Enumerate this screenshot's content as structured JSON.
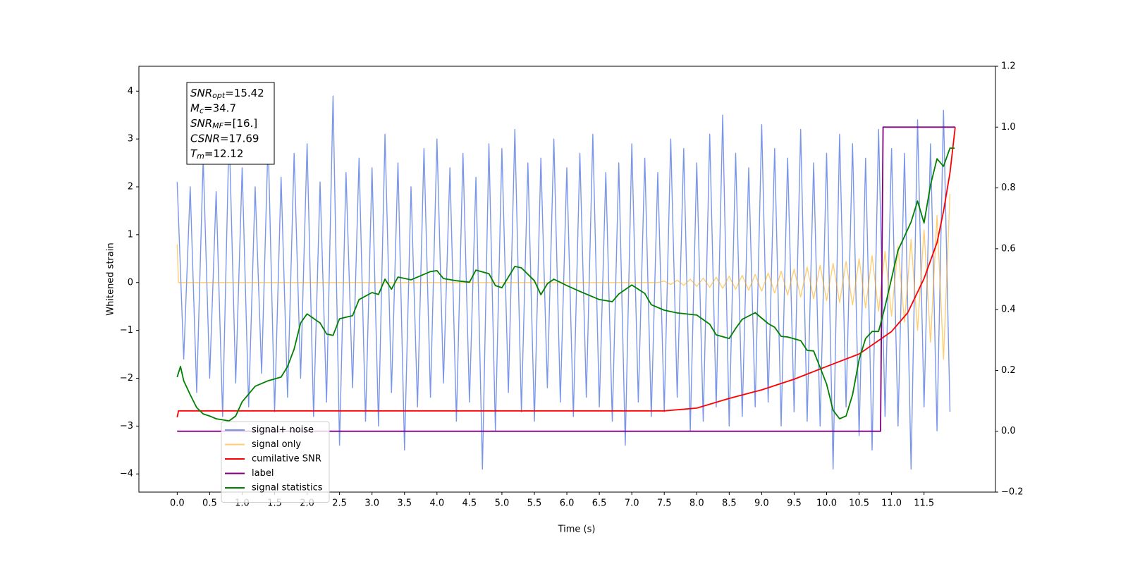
{
  "chart_data": {
    "type": "line",
    "xlabel": "Time (s)",
    "ylabel": "Whitened strain",
    "xlim": [
      -0.59,
      12.6
    ],
    "ylim": [
      -4.38,
      4.52
    ],
    "y2lim": [
      -0.2,
      1.2
    ],
    "xticks": [
      {
        "value": 0,
        "label": "0.0"
      },
      0.5,
      {
        "value": 1,
        "label": "1.0"
      },
      1.5,
      {
        "value": 2,
        "label": "2.0"
      },
      2.5,
      {
        "value": 3,
        "label": "3.0"
      },
      3.5,
      {
        "value": 4,
        "label": "4.0"
      },
      4.5,
      {
        "value": 5,
        "label": "5.0"
      },
      5.5,
      {
        "value": 6,
        "label": "6.0"
      },
      6.5,
      {
        "value": 7,
        "label": "7.0"
      },
      7.5,
      {
        "value": 8,
        "label": "8.0"
      },
      8.5,
      {
        "value": 9,
        "label": "9.0"
      },
      9.5,
      {
        "value": 10,
        "label": "10.0"
      },
      10.5,
      {
        "value": 11,
        "label": "11.0"
      },
      11.5
    ],
    "yticks": [
      {
        "value": -4,
        "label": "−4"
      },
      {
        "value": -3,
        "label": "−3"
      },
      {
        "value": -2,
        "label": "−2"
      },
      {
        "value": -1,
        "label": "−1"
      },
      0,
      1,
      2,
      3,
      4
    ],
    "y2ticks": [
      {
        "value": -0.2,
        "label": "−0.2"
      },
      {
        "value": 0,
        "label": "0.0"
      },
      0.2,
      0.4,
      0.6,
      0.8,
      {
        "value": 1,
        "label": "1.0"
      },
      1.2
    ],
    "legend": "lower left",
    "annotation": [
      {
        "main": "SNR",
        "sub": "opt",
        "rest": "=15.42"
      },
      {
        "main": "M",
        "sub": "c",
        "rest": "=34.7"
      },
      {
        "main": "SNR",
        "sub": "MF",
        "rest": "=[16.]"
      },
      {
        "main": "CSNR",
        "rest": "=17.69"
      },
      {
        "main": "T",
        "sub": "m",
        "rest": "=12.12"
      }
    ],
    "series": [
      {
        "name": "signal+ noise",
        "color": "#4169e1",
        "alpha": 0.7,
        "axis": "y",
        "x": [
          0,
          0.1,
          0.2,
          0.3,
          0.4,
          0.5,
          0.6,
          0.7,
          0.8,
          0.9,
          1,
          1.1,
          1.2,
          1.3,
          1.4,
          1.5,
          1.6,
          1.7,
          1.8,
          1.9,
          2,
          2.1,
          2.2,
          2.3,
          2.4,
          2.5,
          2.6,
          2.7,
          2.8,
          2.9,
          3,
          3.1,
          3.2,
          3.3,
          3.4,
          3.5,
          3.6,
          3.7,
          3.8,
          3.9,
          4,
          4.1,
          4.2,
          4.3,
          4.4,
          4.5,
          4.6,
          4.7,
          4.8,
          4.9,
          5,
          5.1,
          5.2,
          5.3,
          5.4,
          5.5,
          5.6,
          5.7,
          5.8,
          5.9,
          6,
          6.1,
          6.2,
          6.3,
          6.4,
          6.5,
          6.6,
          6.7,
          6.8,
          6.9,
          7,
          7.1,
          7.2,
          7.3,
          7.4,
          7.5,
          7.6,
          7.7,
          7.8,
          7.9,
          8,
          8.1,
          8.2,
          8.3,
          8.4,
          8.5,
          8.6,
          8.7,
          8.8,
          8.9,
          9,
          9.1,
          9.2,
          9.3,
          9.4,
          9.5,
          9.6,
          9.7,
          9.8,
          9.9,
          10,
          10.1,
          10.2,
          10.3,
          10.4,
          10.5,
          10.6,
          10.7,
          10.8,
          10.9,
          11,
          11.1,
          11.2,
          11.3,
          11.4,
          11.5,
          11.6,
          11.7,
          11.8,
          11.9
        ],
        "values": [
          2.1,
          -1.6,
          2.0,
          -2.3,
          2.6,
          -2.0,
          1.9,
          -2.8,
          3.2,
          -2.1,
          2.4,
          -2.6,
          2.0,
          -1.9,
          3.0,
          -2.7,
          2.2,
          -2.4,
          2.7,
          -2.0,
          2.9,
          -2.8,
          2.1,
          -2.5,
          3.9,
          -3.4,
          2.3,
          -2.2,
          2.6,
          -2.9,
          2.4,
          -3.0,
          3.1,
          -2.3,
          2.5,
          -3.5,
          2.0,
          -2.6,
          2.8,
          -2.4,
          3.0,
          -2.1,
          2.4,
          -2.9,
          2.7,
          -2.5,
          2.2,
          -3.9,
          2.9,
          -3.1,
          2.8,
          -2.3,
          3.2,
          -2.7,
          2.5,
          -2.9,
          2.6,
          -2.2,
          3.0,
          -2.5,
          2.4,
          -2.8,
          2.7,
          -2.4,
          3.1,
          -2.6,
          2.3,
          -2.9,
          2.5,
          -3.4,
          2.9,
          -2.5,
          2.6,
          -2.8,
          2.3,
          -2.7,
          3.0,
          -2.4,
          2.8,
          -3.1,
          2.5,
          -2.9,
          3.1,
          -2.6,
          3.5,
          -3.0,
          2.7,
          -2.8,
          2.4,
          -2.6,
          3.3,
          -2.5,
          2.8,
          -3.0,
          2.6,
          -2.7,
          3.2,
          -2.9,
          2.5,
          -3.0,
          2.7,
          -3.9,
          3.1,
          -2.6,
          2.9,
          -3.2,
          2.6,
          -3.5,
          3.2,
          -2.8,
          2.8,
          -3.0,
          2.7,
          -3.9,
          3.4,
          -2.6,
          2.9,
          -3.1,
          3.6,
          -2.7
        ]
      },
      {
        "name": "signal only",
        "color": "#ffa500",
        "alpha": 0.55,
        "axis": "y",
        "x": [
          0,
          0.02,
          7.4,
          7.5,
          7.6,
          7.7,
          7.8,
          7.9,
          8,
          8.1,
          8.2,
          8.3,
          8.4,
          8.5,
          8.6,
          8.7,
          8.8,
          8.9,
          9,
          9.1,
          9.2,
          9.3,
          9.4,
          9.5,
          9.6,
          9.7,
          9.8,
          9.9,
          10,
          10.1,
          10.2,
          10.3,
          10.4,
          10.5,
          10.6,
          10.7,
          10.8,
          10.9,
          11,
          11.1,
          11.2,
          11.3,
          11.4,
          11.5,
          11.6,
          11.7,
          11.8,
          11.9
        ],
        "values": [
          0.8,
          0,
          0,
          0.03,
          -0.04,
          0.05,
          -0.06,
          0.07,
          -0.08,
          0.09,
          -0.1,
          0.11,
          -0.12,
          0.13,
          -0.14,
          0.15,
          -0.16,
          0.17,
          -0.18,
          0.2,
          -0.22,
          0.24,
          -0.26,
          0.28,
          -0.3,
          0.32,
          -0.34,
          0.36,
          -0.38,
          0.4,
          -0.42,
          0.44,
          -0.47,
          0.5,
          -0.53,
          0.56,
          -0.6,
          0.65,
          -0.7,
          0.76,
          -0.83,
          0.9,
          -1.0,
          1.1,
          -1.25,
          1.4,
          -1.6,
          1.85
        ]
      },
      {
        "name": "cumilative SNR",
        "color": "#ff0000",
        "alpha": 1,
        "axis": "y2",
        "x": [
          0,
          0.02,
          7.5,
          8,
          8.5,
          9,
          9.5,
          10,
          10.5,
          11,
          11.25,
          11.5,
          11.7,
          11.8,
          11.9,
          11.98
        ],
        "values": [
          0.046,
          0.067,
          0.067,
          0.076,
          0.108,
          0.136,
          0.171,
          0.213,
          0.254,
          0.328,
          0.39,
          0.502,
          0.62,
          0.723,
          0.85,
          1.0
        ]
      },
      {
        "name": "label",
        "color": "#800080",
        "alpha": 1,
        "axis": "y2",
        "x": [
          0,
          10.83,
          10.87,
          11.98
        ],
        "values": [
          0,
          0,
          1,
          1
        ]
      },
      {
        "name": "signal statistics",
        "color": "#008000",
        "alpha": 1,
        "axis": "y2",
        "x": [
          0,
          0.05,
          0.1,
          0.2,
          0.3,
          0.4,
          0.5,
          0.6,
          0.8,
          0.9,
          1.0,
          1.2,
          1.4,
          1.6,
          1.7,
          1.8,
          1.9,
          2.0,
          2.2,
          2.3,
          2.4,
          2.5,
          2.7,
          2.8,
          3.0,
          3.1,
          3.2,
          3.3,
          3.4,
          3.6,
          3.9,
          4.0,
          4.1,
          4.3,
          4.5,
          4.6,
          4.8,
          4.9,
          5.0,
          5.2,
          5.3,
          5.5,
          5.6,
          5.7,
          5.8,
          6.0,
          6.2,
          6.5,
          6.7,
          6.8,
          7.0,
          7.2,
          7.3,
          7.5,
          7.7,
          8.0,
          8.2,
          8.3,
          8.5,
          8.6,
          8.7,
          8.9,
          9.1,
          9.2,
          9.3,
          9.4,
          9.6,
          9.7,
          9.8,
          10.0,
          10.1,
          10.2,
          10.3,
          10.4,
          10.5,
          10.6,
          10.7,
          10.8,
          10.9,
          11.0,
          11.1,
          11.2,
          11.3,
          11.4,
          11.5,
          11.6,
          11.7,
          11.8,
          11.9,
          11.97
        ],
        "values": [
          0.178,
          0.213,
          0.166,
          0.12,
          0.078,
          0.057,
          0.05,
          0.041,
          0.034,
          0.05,
          0.097,
          0.148,
          0.166,
          0.178,
          0.213,
          0.27,
          0.356,
          0.386,
          0.356,
          0.32,
          0.315,
          0.37,
          0.38,
          0.433,
          0.456,
          0.45,
          0.5,
          0.467,
          0.507,
          0.498,
          0.525,
          0.528,
          0.502,
          0.495,
          0.49,
          0.53,
          0.518,
          0.479,
          0.472,
          0.542,
          0.537,
          0.495,
          0.449,
          0.485,
          0.5,
          0.479,
          0.46,
          0.433,
          0.426,
          0.451,
          0.481,
          0.453,
          0.416,
          0.398,
          0.389,
          0.382,
          0.352,
          0.317,
          0.305,
          0.338,
          0.368,
          0.39,
          0.354,
          0.342,
          0.312,
          0.31,
          0.298,
          0.266,
          0.264,
          0.155,
          0.069,
          0.041,
          0.05,
          0.12,
          0.236,
          0.305,
          0.328,
          0.328,
          0.41,
          0.502,
          0.595,
          0.641,
          0.688,
          0.757,
          0.685,
          0.81,
          0.896,
          0.871,
          0.931,
          0.931
        ]
      }
    ]
  }
}
